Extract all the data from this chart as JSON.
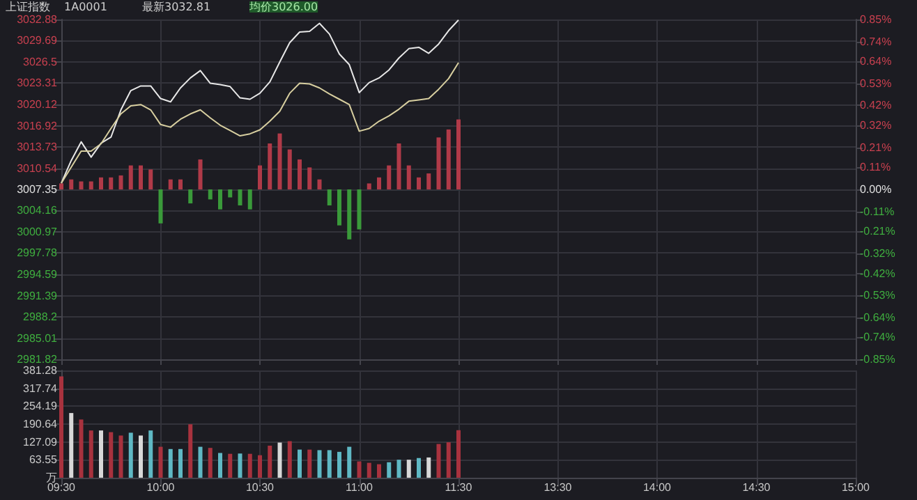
{
  "chart_data": [
    {
      "type": "line",
      "annotations": [
        "上证指数",
        "1A0001",
        "最新3032.81",
        "均价3026.00"
      ],
      "categories": [
        null,
        null,
        null,
        null,
        null,
        null,
        null,
        null,
        null,
        null,
        null,
        null,
        null,
        null,
        null,
        null,
        null,
        null,
        null,
        null,
        null,
        null,
        null,
        null,
        null,
        null,
        null,
        null,
        null,
        null,
        null,
        null,
        null,
        null,
        null,
        null,
        null,
        null,
        null,
        null,
        null,
        null,
        null,
        null,
        null,
        null,
        null,
        null,
        null,
        null,
        null,
        null,
        null,
        null,
        null,
        null,
        null,
        null,
        null,
        null,
        null,
        null,
        null,
        null,
        null,
        null,
        null,
        null,
        null,
        null,
        null,
        null,
        null,
        null,
        null,
        null,
        null,
        null,
        null,
        null,
        null
      ],
      "ylim": [
        2981.82,
        3032.88
      ],
      "yticks": [
        2981.82,
        2985.01,
        2988.2,
        2991.39,
        2994.59,
        2997.78,
        3000.97,
        3004.16,
        3007.35,
        3010.54,
        3013.73,
        3016.92,
        3020.12,
        3023.31,
        3026.5,
        3029.69,
        3032.88
      ],
      "y2lim": [
        -0.85,
        0.85
      ],
      "y2ticks": [
        {
          "value": -0.85,
          "label": "-0.85%"
        },
        {
          "value": -0.74,
          "label": "-0.74%"
        },
        {
          "value": -0.64,
          "label": "-0.64%"
        },
        {
          "value": -0.53,
          "label": "-0.53%"
        },
        {
          "value": -0.42,
          "label": "-0.42%"
        },
        {
          "value": -0.32,
          "label": "-0.32%"
        },
        {
          "value": -0.21,
          "label": "-0.21%"
        },
        {
          "value": -0.11,
          "label": "-0.11%"
        },
        {
          "value": 0,
          "label": "0.00%"
        },
        {
          "value": 0.11,
          "label": "0.11%"
        },
        {
          "value": 0.21,
          "label": "0.21%"
        },
        {
          "value": 0.32,
          "label": "0.32%"
        },
        {
          "value": 0.42,
          "label": "0.42%"
        },
        {
          "value": 0.53,
          "label": "0.53%"
        },
        {
          "value": 0.64,
          "label": "0.64%"
        },
        {
          "value": 0.74,
          "label": "0.74%"
        },
        {
          "value": 0.85,
          "label": "0.85%"
        }
      ],
      "tick_labels": "y",
      "grid": true,
      "line_style": "solid",
      "series": [
        {
          "type": "bar",
          "axis": "y2",
          "values": [
            0.03,
            0.05,
            0.04,
            0.04,
            0.06,
            0.06,
            0.07,
            0.12,
            0.12,
            0.1,
            -0.17,
            0.05,
            0.05,
            -0.07,
            0.15,
            -0.05,
            -0.1,
            -0.04,
            -0.08,
            -0.1,
            0.12,
            0.23,
            0.28,
            0.2,
            0.15,
            0.11,
            0.05,
            -0.08,
            -0.18,
            -0.25,
            -0.2,
            0.03,
            0.06,
            0.12,
            0.23,
            0.12,
            0.06,
            0.08,
            0.26,
            0.3,
            0.35,
            null,
            null,
            null,
            null,
            null,
            null,
            null,
            null,
            null,
            null,
            null,
            null,
            null,
            null,
            null,
            null,
            null,
            null,
            null,
            null,
            null,
            null,
            null,
            null,
            null,
            null,
            null,
            null,
            null,
            null,
            null,
            null,
            null,
            null,
            null,
            null,
            null,
            null,
            null,
            null
          ],
          "colors": [
            "#b03a48",
            "#b03a48",
            "#b03a48",
            "#b03a48",
            "#b03a48",
            "#b03a48",
            "#b03a48",
            "#b03a48",
            "#b03a48",
            "#b03a48",
            "#3a9a3a",
            "#b03a48",
            "#b03a48",
            "#3a9a3a",
            "#b03a48",
            "#3a9a3a",
            "#3a9a3a",
            "#3a9a3a",
            "#3a9a3a",
            "#3a9a3a",
            "#b03a48",
            "#b03a48",
            "#b03a48",
            "#b03a48",
            "#b03a48",
            "#b03a48",
            "#b03a48",
            "#3a9a3a",
            "#3a9a3a",
            "#3a9a3a",
            "#3a9a3a",
            "#b03a48",
            "#b03a48",
            "#b03a48",
            "#b03a48",
            "#b03a48",
            "#b03a48",
            "#b03a48",
            "#b03a48",
            "#b03a48",
            "#b03a48",
            null,
            null,
            null,
            null,
            null,
            null,
            null,
            null,
            null,
            null,
            null,
            null,
            null,
            null,
            null,
            null,
            null,
            null,
            null,
            null,
            null,
            null,
            null,
            null,
            null,
            null,
            null,
            null,
            null,
            null,
            null,
            null,
            null,
            null,
            null,
            null,
            null,
            null,
            null,
            null
          ]
        },
        {
          "type": "line",
          "color": "#e8e8e8",
          "values": [
            3008.3,
            3011.7,
            3014.5,
            3012.2,
            3014.3,
            3015.2,
            3019.3,
            3022.2,
            3022.9,
            3022.9,
            3021,
            3020.5,
            3022.6,
            3024.1,
            3025.2,
            3023.3,
            3023.1,
            3022.8,
            3021.1,
            3020.9,
            3021.8,
            3023.5,
            3026.5,
            3029.4,
            3031,
            3031.1,
            3032.3,
            3030.7,
            3027.7,
            3026.1,
            3021.9,
            3023.4,
            3024.1,
            3025.3,
            3027.1,
            3028.5,
            3028.7,
            3027.8,
            3029.2,
            3031.2,
            3032.8,
            null,
            null,
            null,
            null,
            null,
            null,
            null,
            null,
            null,
            null,
            null,
            null,
            null,
            null,
            null,
            null,
            null,
            null,
            null,
            null,
            null,
            null,
            null,
            null,
            null,
            null,
            null,
            null,
            null,
            null,
            null,
            null,
            null,
            null,
            null,
            null,
            null,
            null,
            null,
            null
          ]
        },
        {
          "type": "line",
          "color": "#d8cfa0",
          "values": [
            3008.3,
            3010.7,
            3013.1,
            3013.1,
            3014.2,
            3016.5,
            3018.7,
            3019.9,
            3020.1,
            3019.3,
            3017.1,
            3016.7,
            3017.9,
            3018.7,
            3019.3,
            3018.1,
            3017,
            3016.2,
            3015.4,
            3015.7,
            3016.3,
            3017.6,
            3019.1,
            3021.8,
            3023.3,
            3023.2,
            3022.6,
            3021.7,
            3020.9,
            3020.1,
            3016.1,
            3016.5,
            3017.6,
            3018.4,
            3019.4,
            3020.6,
            3020.8,
            3021,
            3022.4,
            3024,
            3026.4,
            null,
            null,
            null,
            null,
            null,
            null,
            null,
            null,
            null,
            null,
            null,
            null,
            null,
            null,
            null,
            null,
            null,
            null,
            null,
            null,
            null,
            null,
            null,
            null,
            null,
            null,
            null,
            null,
            null,
            null,
            null,
            null,
            null,
            null,
            null,
            null,
            null,
            null,
            null,
            null
          ]
        }
      ]
    },
    {
      "type": "bar",
      "categories": [
        "09:30",
        null,
        null,
        null,
        null,
        null,
        null,
        null,
        null,
        null,
        "10:00",
        null,
        null,
        null,
        null,
        null,
        null,
        null,
        null,
        null,
        "10:30",
        null,
        null,
        null,
        null,
        null,
        null,
        null,
        null,
        null,
        "11:00",
        null,
        null,
        null,
        null,
        null,
        null,
        null,
        null,
        null,
        "11:30",
        null,
        null,
        null,
        null,
        null,
        null,
        null,
        null,
        null,
        "13:30",
        null,
        null,
        null,
        null,
        null,
        null,
        null,
        null,
        null,
        "14:00",
        null,
        null,
        null,
        null,
        null,
        null,
        null,
        null,
        null,
        "14:30",
        null,
        null,
        null,
        null,
        null,
        null,
        null,
        null,
        null,
        "15:00"
      ],
      "ylim": [
        0,
        381.28
      ],
      "yticks": [
        {
          "value": 0,
          "label": "万"
        },
        63.55,
        127.09,
        190.64,
        254.19,
        317.74,
        381.28
      ],
      "grid": true,
      "values": [
        360,
        230,
        207,
        168,
        168,
        162,
        150,
        160,
        150,
        168,
        110,
        102,
        102,
        190,
        110,
        106,
        88,
        85,
        86,
        85,
        80,
        114,
        125,
        130,
        100,
        100,
        98,
        98,
        92,
        110,
        58,
        53,
        48,
        55,
        64,
        64,
        70,
        72,
        120,
        126,
        169,
        null,
        null,
        null,
        null,
        null,
        null,
        null,
        null,
        null,
        null,
        null,
        null,
        null,
        null,
        null,
        null,
        null,
        null,
        null,
        null,
        null,
        null,
        null,
        null,
        null,
        null,
        null,
        null,
        null,
        null,
        null,
        null,
        null,
        null,
        null,
        null,
        null,
        null,
        null,
        null
      ],
      "colors": [
        "#a8323e",
        "#d8d8d8",
        "#a8323e",
        "#a8323e",
        "#d8d8d8",
        "#a8323e",
        "#a8323e",
        "#5fb8c4",
        "#d8d8d8",
        "#5fb8c4",
        "#a8323e",
        "#5fb8c4",
        "#5fb8c4",
        "#a8323e",
        "#5fb8c4",
        "#a8323e",
        "#5fb8c4",
        "#a8323e",
        "#5fb8c4",
        "#a8323e",
        "#a8323e",
        "#a8323e",
        "#d8d8d8",
        "#a8323e",
        "#5fb8c4",
        "#a8323e",
        "#5fb8c4",
        "#5fb8c4",
        "#5fb8c4",
        "#5fb8c4",
        "#a8323e",
        "#a8323e",
        "#a8323e",
        "#5fb8c4",
        "#5fb8c4",
        "#d8d8d8",
        "#5fb8c4",
        "#d8d8d8",
        "#a8323e",
        "#a8323e",
        "#a8323e",
        null,
        null,
        null,
        null,
        null,
        null,
        null,
        null,
        null,
        null,
        null,
        null,
        null,
        null,
        null,
        null,
        null,
        null,
        null,
        null,
        null,
        null,
        null,
        null,
        null,
        null,
        null,
        null,
        null,
        null,
        null,
        null,
        null,
        null,
        null,
        null,
        null,
        null,
        null,
        null
      ]
    }
  ]
}
